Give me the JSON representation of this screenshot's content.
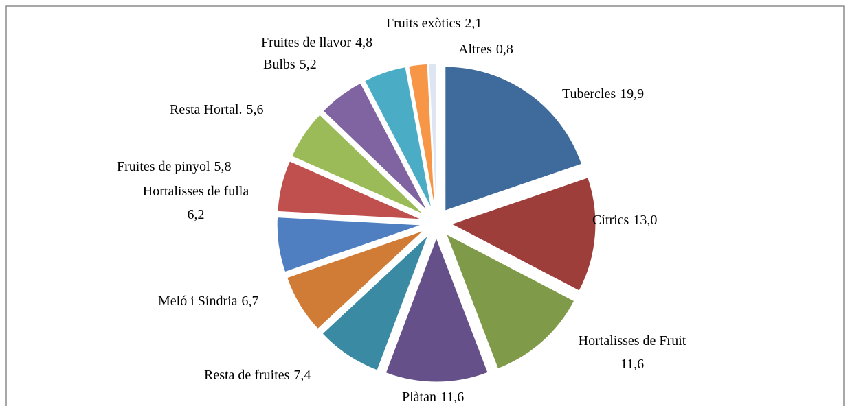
{
  "chart_data": {
    "type": "pie",
    "categories": [
      "Tubercles",
      "Cítrics",
      "Hortalisses de Fruit",
      "Plàtan",
      "Resta de fruites",
      "Meló i Síndria",
      "Hortalisses de fulla",
      "Fruites de pinyol",
      "Resta Hortal.",
      "Bulbs",
      "Fruites de llavor",
      "Fruits exòtics",
      "Altres"
    ],
    "values": [
      19.9,
      13.0,
      11.6,
      11.6,
      7.4,
      6.7,
      6.2,
      5.8,
      5.6,
      5.2,
      4.8,
      2.1,
      0.8
    ],
    "value_labels": [
      "19,9",
      "13,0",
      "11,6",
      "11,6",
      "7,4",
      "6,7",
      "6,2",
      "5,8",
      "5,6",
      "5,2",
      "4,8",
      "2,1",
      "0,8"
    ],
    "colors": [
      "#3f6a9c",
      "#9e3e3b",
      "#7f9b4a",
      "#66508a",
      "#3a8aa3",
      "#d07b36",
      "#4f7fc0",
      "#c0504d",
      "#9bbb59",
      "#8064a2",
      "#4bacc6",
      "#f79646",
      "#dce6f2"
    ]
  }
}
